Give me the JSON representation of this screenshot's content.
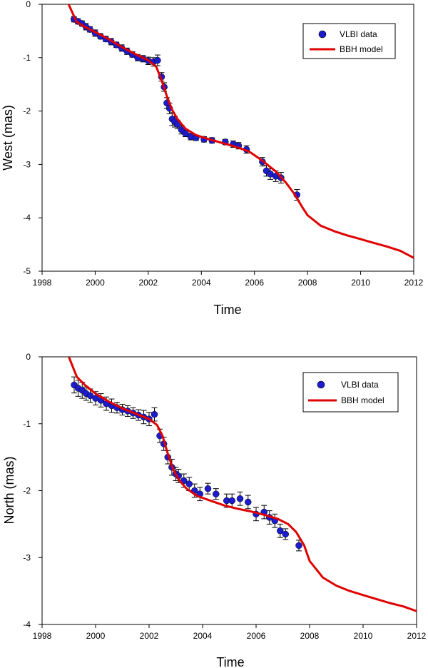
{
  "chart_data": [
    {
      "type": "scatter",
      "xlabel": "Time",
      "ylabel": "West (mas)",
      "xlim": [
        1998,
        2012
      ],
      "ylim": [
        -5,
        0
      ],
      "x_ticks": [
        "1998",
        "2000",
        "2002",
        "2004",
        "2006",
        "2008",
        "2010",
        "2012"
      ],
      "x_tick_values": [
        1998,
        2000,
        2002,
        2004,
        2006,
        2008,
        2010,
        2012
      ],
      "y_ticks": [
        "0",
        "-1",
        "-2",
        "-3",
        "-4",
        "-5"
      ],
      "y_tick_values": [
        0,
        -1,
        -2,
        -3,
        -4,
        -5
      ],
      "grid": false,
      "legend_position": "top-right",
      "legend": [
        "VLBI data",
        "BBH model"
      ],
      "colors": {
        "points": "#1c1ccc",
        "model": "#e00000",
        "errorbars": "#000000"
      },
      "series": [
        {
          "name": "VLBI data",
          "kind": "points",
          "x": [
            1999.2,
            1999.35,
            1999.5,
            1999.65,
            1999.8,
            2000.0,
            2000.2,
            2000.4,
            2000.6,
            2000.8,
            2001.0,
            2001.2,
            2001.4,
            2001.6,
            2001.8,
            2002.0,
            2002.2,
            2002.35,
            2002.5,
            2002.6,
            2002.7,
            2002.8,
            2002.9,
            2003.0,
            2003.1,
            2003.25,
            2003.4,
            2003.6,
            2003.8,
            2004.1,
            2004.4,
            2004.9,
            2005.2,
            2005.4,
            2005.7,
            2006.3,
            2006.45,
            2006.6,
            2006.8,
            2007.0,
            2007.6
          ],
          "y": [
            -0.28,
            -0.32,
            -0.36,
            -0.42,
            -0.47,
            -0.54,
            -0.6,
            -0.65,
            -0.7,
            -0.76,
            -0.82,
            -0.88,
            -0.94,
            -1.0,
            -1.02,
            -1.06,
            -1.08,
            -1.05,
            -1.36,
            -1.55,
            -1.85,
            -1.95,
            -2.15,
            -2.2,
            -2.25,
            -2.35,
            -2.42,
            -2.48,
            -2.5,
            -2.53,
            -2.55,
            -2.58,
            -2.62,
            -2.65,
            -2.72,
            -2.95,
            -3.12,
            -3.18,
            -3.22,
            -3.25,
            -3.57
          ],
          "err": [
            0.05,
            0.05,
            0.05,
            0.06,
            0.05,
            0.06,
            0.05,
            0.05,
            0.06,
            0.05,
            0.06,
            0.06,
            0.05,
            0.06,
            0.06,
            0.07,
            0.08,
            0.1,
            0.08,
            0.08,
            0.1,
            0.1,
            0.12,
            0.1,
            0.08,
            0.08,
            0.06,
            0.06,
            0.05,
            0.05,
            0.05,
            0.05,
            0.06,
            0.06,
            0.07,
            0.08,
            0.1,
            0.1,
            0.1,
            0.1,
            0.1
          ]
        },
        {
          "name": "BBH model",
          "kind": "line",
          "x": [
            1999.0,
            1999.3,
            1999.6,
            2000.0,
            2000.5,
            2001.0,
            2001.5,
            2002.0,
            2002.3,
            2002.5,
            2002.7,
            2002.9,
            2003.1,
            2003.4,
            2003.8,
            2004.3,
            2004.8,
            2005.3,
            2005.8,
            2006.3,
            2006.8,
            2007.2,
            2007.5,
            2007.8,
            2008.0,
            2008.5,
            2009.0,
            2009.5,
            2010.0,
            2010.5,
            2011.0,
            2011.5,
            2012.0
          ],
          "y": [
            0.0,
            -0.33,
            -0.42,
            -0.52,
            -0.65,
            -0.8,
            -0.93,
            -1.05,
            -1.17,
            -1.42,
            -1.72,
            -1.98,
            -2.15,
            -2.33,
            -2.45,
            -2.53,
            -2.6,
            -2.67,
            -2.76,
            -2.93,
            -3.13,
            -3.35,
            -3.55,
            -3.8,
            -3.95,
            -4.15,
            -4.25,
            -4.33,
            -4.4,
            -4.47,
            -4.54,
            -4.62,
            -4.75
          ]
        }
      ]
    },
    {
      "type": "scatter",
      "xlabel": "Time",
      "ylabel": "North (mas)",
      "xlim": [
        1998,
        2012
      ],
      "ylim": [
        -4,
        0
      ],
      "x_ticks": [
        "1998",
        "2000",
        "2002",
        "2004",
        "2006",
        "2008",
        "2010",
        "2012"
      ],
      "x_tick_values": [
        1998,
        2000,
        2002,
        2004,
        2006,
        2008,
        2010,
        2012
      ],
      "y_ticks": [
        "0",
        "-1",
        "-2",
        "-3",
        "-4"
      ],
      "y_tick_values": [
        0,
        -1,
        -2,
        -3,
        -4
      ],
      "grid": false,
      "legend_position": "top-right",
      "legend": [
        "VLBI data",
        "BBH model"
      ],
      "colors": {
        "points": "#1c1ccc",
        "model": "#e00000",
        "errorbars": "#000000"
      },
      "series": [
        {
          "name": "VLBI data",
          "kind": "points",
          "x": [
            1999.2,
            1999.35,
            1999.5,
            1999.65,
            1999.8,
            2000.0,
            2000.2,
            2000.4,
            2000.6,
            2000.8,
            2001.0,
            2001.2,
            2001.4,
            2001.6,
            2001.8,
            2002.0,
            2002.2,
            2002.4,
            2002.55,
            2002.7,
            2002.85,
            2003.0,
            2003.1,
            2003.3,
            2003.5,
            2003.7,
            2003.9,
            2004.2,
            2004.5,
            2004.9,
            2005.1,
            2005.4,
            2005.7,
            2006.0,
            2006.3,
            2006.5,
            2006.7,
            2006.9,
            2007.1,
            2007.6
          ],
          "y": [
            -0.42,
            -0.47,
            -0.5,
            -0.55,
            -0.58,
            -0.62,
            -0.65,
            -0.7,
            -0.73,
            -0.76,
            -0.79,
            -0.81,
            -0.84,
            -0.87,
            -0.9,
            -0.93,
            -0.86,
            -1.18,
            -1.3,
            -1.5,
            -1.65,
            -1.75,
            -1.78,
            -1.85,
            -1.9,
            -2.0,
            -2.05,
            -1.97,
            -2.05,
            -2.15,
            -2.15,
            -2.12,
            -2.17,
            -2.35,
            -2.32,
            -2.4,
            -2.45,
            -2.6,
            -2.65,
            -2.82
          ],
          "err": [
            0.12,
            0.12,
            0.12,
            0.1,
            0.1,
            0.1,
            0.1,
            0.1,
            0.1,
            0.08,
            0.08,
            0.08,
            0.08,
            0.08,
            0.1,
            0.1,
            0.1,
            0.1,
            0.1,
            0.1,
            0.12,
            0.1,
            0.1,
            0.1,
            0.1,
            0.1,
            0.1,
            0.08,
            0.08,
            0.1,
            0.1,
            0.1,
            0.1,
            0.1,
            0.1,
            0.1,
            0.1,
            0.1,
            0.08,
            0.08
          ]
        },
        {
          "name": "BBH model",
          "kind": "line",
          "x": [
            1999.0,
            1999.3,
            1999.6,
            2000.0,
            2000.5,
            2001.0,
            2001.5,
            2002.0,
            2002.3,
            2002.5,
            2002.7,
            2002.9,
            2003.1,
            2003.4,
            2003.8,
            2004.3,
            2004.8,
            2005.3,
            2005.8,
            2006.3,
            2006.8,
            2007.2,
            2007.5,
            2007.8,
            2008.0,
            2008.5,
            2009.0,
            2009.5,
            2010.0,
            2010.5,
            2011.0,
            2011.5,
            2012.0
          ],
          "y": [
            0.0,
            -0.3,
            -0.42,
            -0.55,
            -0.67,
            -0.77,
            -0.85,
            -0.93,
            -1.02,
            -1.18,
            -1.45,
            -1.68,
            -1.83,
            -1.97,
            -2.08,
            -2.15,
            -2.22,
            -2.27,
            -2.31,
            -2.36,
            -2.42,
            -2.5,
            -2.62,
            -2.82,
            -3.05,
            -3.3,
            -3.42,
            -3.5,
            -3.56,
            -3.62,
            -3.68,
            -3.73,
            -3.8
          ]
        }
      ]
    }
  ]
}
